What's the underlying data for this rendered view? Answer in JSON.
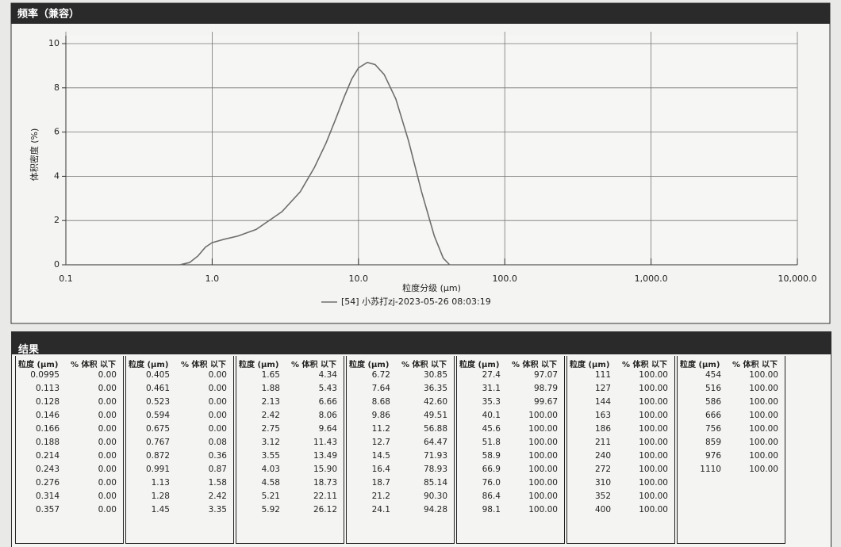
{
  "chart_data": {
    "type": "line",
    "title": "频率（兼容）",
    "x_label": "粒度分级 (μm)",
    "y_label": "体积密度 (%)",
    "x_scale": "log",
    "grid": true,
    "xlim": [
      0.1,
      10000
    ],
    "ylim": [
      0,
      10
    ],
    "xticks": [
      0.1,
      {
        "value": 1,
        "label": "1.0"
      },
      {
        "value": 10,
        "label": "10.0"
      },
      {
        "value": 100,
        "label": "100.0"
      },
      {
        "value": 1000,
        "label": "1,000.0"
      },
      {
        "value": 10000,
        "label": "10,000.0"
      }
    ],
    "yticks": [
      0,
      2,
      4,
      6,
      8,
      10
    ],
    "series": [
      {
        "name": "[54] 小苏打zj-2023-05-26 08:03:19",
        "color": "#6e6e6e",
        "x": [
          0.1,
          0.6,
          0.7,
          0.8,
          0.9,
          1.0,
          1.2,
          1.5,
          2,
          3,
          4,
          5,
          6,
          7,
          8,
          9,
          10,
          11.5,
          13,
          15,
          18,
          22,
          27,
          33,
          38,
          42
        ],
        "values": [
          0,
          0,
          0.1,
          0.4,
          0.8,
          1.0,
          1.15,
          1.3,
          1.6,
          2.4,
          3.3,
          4.4,
          5.5,
          6.6,
          7.6,
          8.4,
          8.9,
          9.15,
          9.05,
          8.6,
          7.5,
          5.6,
          3.3,
          1.3,
          0.3,
          0
        ]
      }
    ]
  },
  "results": {
    "title": "结果",
    "headers": [
      "粒度 (μm)",
      "% 体积 以下"
    ],
    "groups": [
      [
        [
          "0.0995",
          "0.00"
        ],
        [
          "0.113",
          "0.00"
        ],
        [
          "0.128",
          "0.00"
        ],
        [
          "0.146",
          "0.00"
        ],
        [
          "0.166",
          "0.00"
        ],
        [
          "0.188",
          "0.00"
        ],
        [
          "0.214",
          "0.00"
        ],
        [
          "0.243",
          "0.00"
        ],
        [
          "0.276",
          "0.00"
        ],
        [
          "0.314",
          "0.00"
        ],
        [
          "0.357",
          "0.00"
        ]
      ],
      [
        [
          "0.405",
          "0.00"
        ],
        [
          "0.461",
          "0.00"
        ],
        [
          "0.523",
          "0.00"
        ],
        [
          "0.594",
          "0.00"
        ],
        [
          "0.675",
          "0.00"
        ],
        [
          "0.767",
          "0.08"
        ],
        [
          "0.872",
          "0.36"
        ],
        [
          "0.991",
          "0.87"
        ],
        [
          "1.13",
          "1.58"
        ],
        [
          "1.28",
          "2.42"
        ],
        [
          "1.45",
          "3.35"
        ]
      ],
      [
        [
          "1.65",
          "4.34"
        ],
        [
          "1.88",
          "5.43"
        ],
        [
          "2.13",
          "6.66"
        ],
        [
          "2.42",
          "8.06"
        ],
        [
          "2.75",
          "9.64"
        ],
        [
          "3.12",
          "11.43"
        ],
        [
          "3.55",
          "13.49"
        ],
        [
          "4.03",
          "15.90"
        ],
        [
          "4.58",
          "18.73"
        ],
        [
          "5.21",
          "22.11"
        ],
        [
          "5.92",
          "26.12"
        ]
      ],
      [
        [
          "6.72",
          "30.85"
        ],
        [
          "7.64",
          "36.35"
        ],
        [
          "8.68",
          "42.60"
        ],
        [
          "9.86",
          "49.51"
        ],
        [
          "11.2",
          "56.88"
        ],
        [
          "12.7",
          "64.47"
        ],
        [
          "14.5",
          "71.93"
        ],
        [
          "16.4",
          "78.93"
        ],
        [
          "18.7",
          "85.14"
        ],
        [
          "21.2",
          "90.30"
        ],
        [
          "24.1",
          "94.28"
        ]
      ],
      [
        [
          "27.4",
          "97.07"
        ],
        [
          "31.1",
          "98.79"
        ],
        [
          "35.3",
          "99.67"
        ],
        [
          "40.1",
          "100.00"
        ],
        [
          "45.6",
          "100.00"
        ],
        [
          "51.8",
          "100.00"
        ],
        [
          "58.9",
          "100.00"
        ],
        [
          "66.9",
          "100.00"
        ],
        [
          "76.0",
          "100.00"
        ],
        [
          "86.4",
          "100.00"
        ],
        [
          "98.1",
          "100.00"
        ]
      ],
      [
        [
          "111",
          "100.00"
        ],
        [
          "127",
          "100.00"
        ],
        [
          "144",
          "100.00"
        ],
        [
          "163",
          "100.00"
        ],
        [
          "186",
          "100.00"
        ],
        [
          "211",
          "100.00"
        ],
        [
          "240",
          "100.00"
        ],
        [
          "272",
          "100.00"
        ],
        [
          "310",
          "100.00"
        ],
        [
          "352",
          "100.00"
        ],
        [
          "400",
          "100.00"
        ]
      ],
      [
        [
          "454",
          "100.00"
        ],
        [
          "516",
          "100.00"
        ],
        [
          "586",
          "100.00"
        ],
        [
          "666",
          "100.00"
        ],
        [
          "756",
          "100.00"
        ],
        [
          "859",
          "100.00"
        ],
        [
          "976",
          "100.00"
        ],
        [
          "1110",
          "100.00"
        ]
      ]
    ]
  }
}
